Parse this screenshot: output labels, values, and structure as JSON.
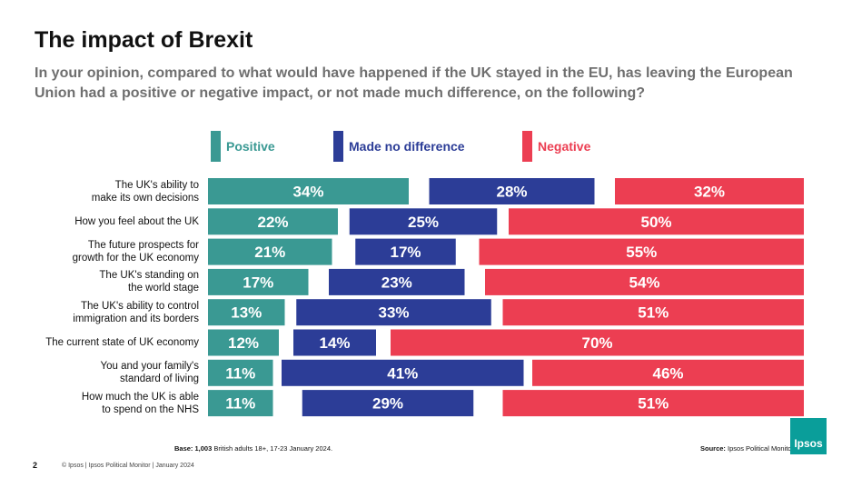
{
  "title": "The impact of Brexit",
  "subtitle": "In your opinion, compared to what would have happened if the UK stayed in the EU, has leaving the European Union had a positive or negative impact, or not made much difference, on the following?",
  "colors": {
    "positive": "#3a9993",
    "no_difference": "#2c3d97",
    "negative": "#ec3e52"
  },
  "chart_data": {
    "type": "bar",
    "orientation": "horizontal",
    "categories": [
      "The UK's ability to\nmake its own decisions",
      "How you feel about the UK",
      "The future prospects for\ngrowth for the UK economy",
      "The UK's standing on\nthe world stage",
      "The UK's ability to control\nimmigration and its borders",
      "The current state of UK economy",
      "You and your family's\nstandard of living",
      "How much the UK is able\nto spend on the NHS"
    ],
    "series": [
      {
        "name": "Positive",
        "values": [
          34,
          22,
          21,
          17,
          13,
          12,
          11,
          11
        ]
      },
      {
        "name": "Made no difference",
        "values": [
          28,
          25,
          17,
          23,
          33,
          14,
          41,
          29
        ]
      },
      {
        "name": "Negative",
        "values": [
          32,
          50,
          55,
          54,
          51,
          70,
          46,
          51
        ]
      }
    ],
    "value_suffix": "%",
    "legend_position": "top"
  },
  "footer": {
    "base_bold": "Base: 1,003",
    "base_rest": " British adults 18+, 17-23 January 2024.",
    "source_bold": "Source:",
    "source_rest": " Ipsos Political Monitor",
    "page_number": "2",
    "copyright": "© Ipsos | Ipsos Political Monitor | January 2024",
    "logo_text": "Ipsos"
  }
}
